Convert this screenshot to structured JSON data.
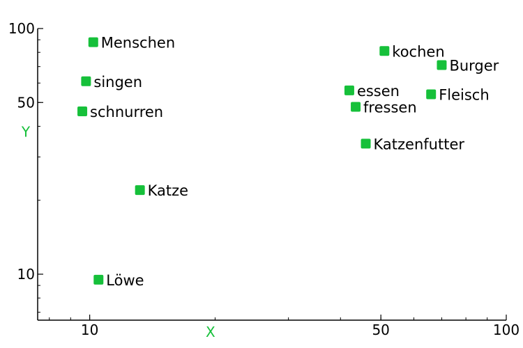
{
  "chart_data": {
    "type": "scatter",
    "title": "",
    "xlabel": "X",
    "ylabel": "Y",
    "xscale": "log",
    "yscale": "log",
    "xlim": [
      7.5,
      100
    ],
    "ylim": [
      6.5,
      100
    ],
    "xticks": [
      {
        "value": 10,
        "label": "10"
      },
      {
        "value": 50,
        "label": "50"
      },
      {
        "value": 100,
        "label": "100"
      }
    ],
    "yticks": [
      {
        "value": 10,
        "label": "10"
      },
      {
        "value": 50,
        "label": "50"
      },
      {
        "value": 100,
        "label": "100"
      }
    ],
    "grid": false,
    "legend": "none",
    "marker_color": "#16c03a",
    "axis_label_color": "#16c03a",
    "points": [
      {
        "label": "Menschen",
        "x": 10.2,
        "y": 88
      },
      {
        "label": "kochen",
        "x": 51,
        "y": 81
      },
      {
        "label": "Burger",
        "x": 70,
        "y": 71
      },
      {
        "label": "singen",
        "x": 9.8,
        "y": 61
      },
      {
        "label": "essen",
        "x": 42,
        "y": 56
      },
      {
        "label": "Fleisch",
        "x": 66,
        "y": 54
      },
      {
        "label": "fressen",
        "x": 43.5,
        "y": 48
      },
      {
        "label": "schnurren",
        "x": 9.6,
        "y": 46
      },
      {
        "label": "Katzenfutter",
        "x": 46,
        "y": 34
      },
      {
        "label": "Katze",
        "x": 13.2,
        "y": 22
      },
      {
        "label": "Löwe",
        "x": 10.5,
        "y": 9.5
      }
    ]
  }
}
